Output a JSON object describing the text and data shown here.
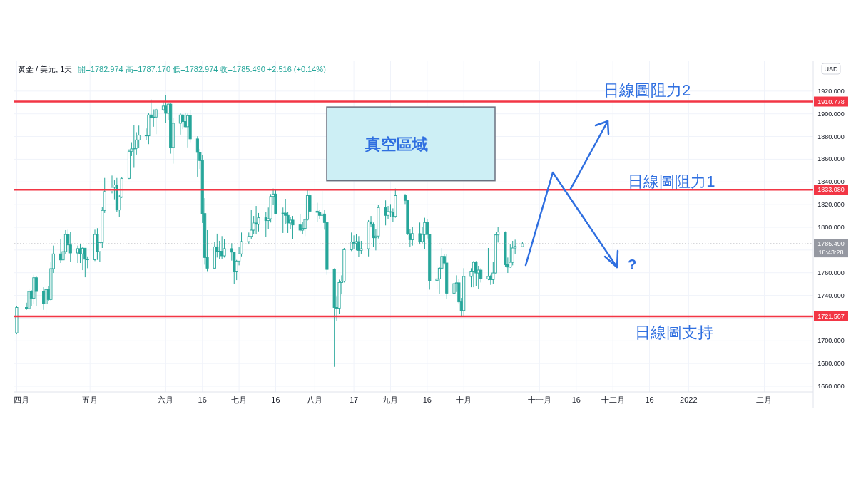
{
  "chart_data": {
    "type": "candlestick",
    "title": "黃金 / 美元, 1天",
    "subtitle": "開=1782.974 高=1787.170 低=1782.974 收=1785.490 +2.516 (+0.14%)",
    "ylabel": "USD",
    "xlim": [
      "2021-03-31",
      "2022-02-21"
    ],
    "ylim": [
      1655,
      1945
    ],
    "xticks": [
      {
        "value": "2021-04-01",
        "label": "四月"
      },
      {
        "value": "2021-05-01",
        "label": "五月"
      },
      {
        "value": "2021-06-01",
        "label": "六月"
      },
      {
        "value": "2021-06-16",
        "label": "16"
      },
      {
        "value": "2021-07-01",
        "label": "七月"
      },
      {
        "value": "2021-07-16",
        "label": "16"
      },
      {
        "value": "2021-08-01",
        "label": "八月"
      },
      {
        "value": "2021-08-17",
        "label": "17"
      },
      {
        "value": "2021-09-01",
        "label": "九月"
      },
      {
        "value": "2021-09-16",
        "label": "16"
      },
      {
        "value": "2021-10-01",
        "label": "十月"
      },
      {
        "value": "2021-11-01",
        "label": "十一月"
      },
      {
        "value": "2021-11-16",
        "label": "16"
      },
      {
        "value": "2021-12-01",
        "label": "十二月"
      },
      {
        "value": "2021-12-16",
        "label": "16"
      },
      {
        "value": "2022-01-01",
        "label": "2022"
      },
      {
        "value": "2022-02-01",
        "label": "二月"
      }
    ],
    "yticks": [
      {
        "value": 1660,
        "label": "1660.000"
      },
      {
        "value": 1680,
        "label": "1680.000"
      },
      {
        "value": 1700,
        "label": "1700.000"
      },
      {
        "value": 1720,
        "label": null
      },
      {
        "value": 1740,
        "label": "1740.000"
      },
      {
        "value": 1760,
        "label": "1760.000"
      },
      {
        "value": 1780,
        "label": null
      },
      {
        "value": 1800,
        "label": "1800.000"
      },
      {
        "value": 1820,
        "label": "1820.000"
      },
      {
        "value": 1840,
        "label": "1840.000"
      },
      {
        "value": 1860,
        "label": "1860.000"
      },
      {
        "value": 1880,
        "label": "1880.000"
      },
      {
        "value": 1900,
        "label": "1900.000"
      },
      {
        "value": 1920,
        "label": "1920.000"
      }
    ],
    "grid": true,
    "x": [
      "2021-04-01",
      "2021-04-05",
      "2021-04-06",
      "2021-04-07",
      "2021-04-08",
      "2021-04-09",
      "2021-04-12",
      "2021-04-13",
      "2021-04-14",
      "2021-04-15",
      "2021-04-16",
      "2021-04-19",
      "2021-04-20",
      "2021-04-21",
      "2021-04-22",
      "2021-04-23",
      "2021-04-26",
      "2021-04-27",
      "2021-04-28",
      "2021-04-29",
      "2021-04-30",
      "2021-05-03",
      "2021-05-04",
      "2021-05-05",
      "2021-05-06",
      "2021-05-07",
      "2021-05-10",
      "2021-05-11",
      "2021-05-12",
      "2021-05-13",
      "2021-05-14",
      "2021-05-17",
      "2021-05-18",
      "2021-05-19",
      "2021-05-20",
      "2021-05-21",
      "2021-05-24",
      "2021-05-25",
      "2021-05-26",
      "2021-05-27",
      "2021-05-28",
      "2021-05-31",
      "2021-06-01",
      "2021-06-02",
      "2021-06-03",
      "2021-06-04",
      "2021-06-07",
      "2021-06-08",
      "2021-06-09",
      "2021-06-10",
      "2021-06-11",
      "2021-06-14",
      "2021-06-15",
      "2021-06-16",
      "2021-06-17",
      "2021-06-18",
      "2021-06-21",
      "2021-06-22",
      "2021-06-23",
      "2021-06-24",
      "2021-06-25",
      "2021-06-28",
      "2021-06-29",
      "2021-06-30",
      "2021-07-01",
      "2021-07-02",
      "2021-07-05",
      "2021-07-06",
      "2021-07-07",
      "2021-07-08",
      "2021-07-09",
      "2021-07-12",
      "2021-07-13",
      "2021-07-14",
      "2021-07-15",
      "2021-07-16",
      "2021-07-19",
      "2021-07-20",
      "2021-07-21",
      "2021-07-22",
      "2021-07-23",
      "2021-07-26",
      "2021-07-27",
      "2021-07-28",
      "2021-07-29",
      "2021-07-30",
      "2021-08-02",
      "2021-08-03",
      "2021-08-04",
      "2021-08-05",
      "2021-08-06",
      "2021-08-09",
      "2021-08-10",
      "2021-08-11",
      "2021-08-12",
      "2021-08-13",
      "2021-08-16",
      "2021-08-17",
      "2021-08-18",
      "2021-08-19",
      "2021-08-20",
      "2021-08-23",
      "2021-08-24",
      "2021-08-25",
      "2021-08-26",
      "2021-08-27",
      "2021-08-30",
      "2021-08-31",
      "2021-09-01",
      "2021-09-02",
      "2021-09-03",
      "2021-09-07",
      "2021-09-08",
      "2021-09-09",
      "2021-09-10",
      "2021-09-13",
      "2021-09-14",
      "2021-09-15",
      "2021-09-16",
      "2021-09-17",
      "2021-09-20",
      "2021-09-21",
      "2021-09-22",
      "2021-09-23",
      "2021-09-24",
      "2021-09-27",
      "2021-09-28",
      "2021-09-29",
      "2021-09-30",
      "2021-10-01",
      "2021-10-04",
      "2021-10-05",
      "2021-10-06",
      "2021-10-07",
      "2021-10-08",
      "2021-10-11",
      "2021-10-12",
      "2021-10-13",
      "2021-10-14",
      "2021-10-15",
      "2021-10-18",
      "2021-10-19",
      "2021-10-20",
      "2021-10-21",
      "2021-10-22",
      "2021-10-25"
    ],
    "series": [
      {
        "color": "#26a69a",
        "ohlc": [
          [
            1707.0,
            1730.5,
            1705.8,
            1729.4
          ],
          [
            1729.4,
            1733.6,
            1727.3,
            1728.4
          ],
          [
            1728.4,
            1745.6,
            1727.3,
            1743.5
          ],
          [
            1743.5,
            1744.7,
            1730.5,
            1737.6
          ],
          [
            1737.6,
            1758.1,
            1732.6,
            1755.6
          ],
          [
            1755.6,
            1757.3,
            1730.9,
            1743.5
          ],
          [
            1743.5,
            1747.2,
            1727.3,
            1732.6
          ],
          [
            1732.6,
            1748.3,
            1723.8,
            1745.2
          ],
          [
            1745.2,
            1748.3,
            1734.7,
            1736.4
          ],
          [
            1736.4,
            1769.2,
            1735.1,
            1763.6
          ],
          [
            1763.6,
            1783.9,
            1759.8,
            1776.6
          ],
          [
            1776.6,
            1789.5,
            1768.6,
            1771.3
          ],
          [
            1771.3,
            1780.7,
            1763.6,
            1778.6
          ],
          [
            1778.6,
            1797.5,
            1776.6,
            1793.7
          ],
          [
            1793.7,
            1797.9,
            1778.2,
            1784.5
          ],
          [
            1784.5,
            1795.8,
            1769.8,
            1777.4
          ],
          [
            1777.4,
            1783.9,
            1768.6,
            1781.2
          ],
          [
            1781.2,
            1785.3,
            1768.6,
            1776.6
          ],
          [
            1776.6,
            1782.4,
            1762.3,
            1781.6
          ],
          [
            1781.6,
            1781.8,
            1756.0,
            1771.9
          ],
          [
            1771.9,
            1774.4,
            1764.0,
            1771.5
          ],
          [
            1771.5,
            1797.9,
            1770.3,
            1793.7
          ],
          [
            1793.7,
            1799.2,
            1771.3,
            1778.6
          ],
          [
            1778.6,
            1787.4,
            1769.8,
            1786.6
          ],
          [
            1786.6,
            1818.0,
            1781.8,
            1814.9
          ],
          [
            1814.9,
            1843.5,
            1812.6,
            1831.4
          ],
          [
            1831.4,
            1845.6,
            1829.9,
            1835.2
          ],
          [
            1835.2,
            1841.4,
            1824.7,
            1837.3
          ],
          [
            1837.3,
            1843.5,
            1813.2,
            1815.3
          ],
          [
            1815.3,
            1828.9,
            1809.0,
            1826.8
          ],
          [
            1826.8,
            1844.0,
            1825.8,
            1843.1
          ],
          [
            1843.1,
            1868.7,
            1842.5,
            1867.0
          ],
          [
            1867.0,
            1875.0,
            1862.8,
            1869.1
          ],
          [
            1869.1,
            1890.0,
            1852.4,
            1869.7
          ],
          [
            1869.7,
            1883.8,
            1864.1,
            1877.0
          ],
          [
            1877.0,
            1889.6,
            1869.7,
            1881.2
          ],
          [
            1881.2,
            1887.1,
            1877.0,
            1880.6
          ],
          [
            1880.6,
            1900.5,
            1873.3,
            1899.0
          ],
          [
            1899.0,
            1912.6,
            1895.9,
            1896.7
          ],
          [
            1896.7,
            1903.9,
            1888.6,
            1897.1
          ],
          [
            1897.1,
            1904.7,
            1882.1,
            1903.6
          ],
          [
            1903.6,
            1910.5,
            1902.6,
            1906.8
          ],
          [
            1906.8,
            1916.4,
            1892.1,
            1900.5
          ],
          [
            1900.5,
            1909.5,
            1894.2,
            1908.5
          ],
          [
            1908.5,
            1909.5,
            1864.9,
            1870.4
          ],
          [
            1870.4,
            1896.3,
            1856.1,
            1891.7
          ],
          [
            1891.7,
            1900.5,
            1881.7,
            1899.0
          ],
          [
            1899.0,
            1899.7,
            1886.5,
            1893.2
          ],
          [
            1893.2,
            1901.1,
            1887.5,
            1888.6
          ],
          [
            1888.6,
            1900.1,
            1870.4,
            1898.4
          ],
          [
            1898.4,
            1903.2,
            1875.0,
            1877.9
          ],
          [
            1877.9,
            1880.2,
            1844.6,
            1866.0
          ],
          [
            1866.0,
            1869.1,
            1851.5,
            1858.8
          ],
          [
            1858.8,
            1863.4,
            1803.8,
            1812.1
          ],
          [
            1812.1,
            1825.7,
            1767.1,
            1773.4
          ],
          [
            1773.4,
            1797.5,
            1760.8,
            1764.0
          ],
          [
            1764.0,
            1787.0,
            1764.0,
            1782.8
          ],
          [
            1782.8,
            1794.4,
            1773.4,
            1778.6
          ],
          [
            1778.6,
            1788.1,
            1772.4,
            1779.0
          ],
          [
            1779.0,
            1792.3,
            1772.4,
            1774.9
          ],
          [
            1774.9,
            1789.5,
            1773.4,
            1781.2
          ],
          [
            1781.2,
            1786.0,
            1770.7,
            1778.2
          ],
          [
            1778.2,
            1778.2,
            1750.4,
            1760.8
          ],
          [
            1760.8,
            1771.3,
            1753.5,
            1770.3
          ],
          [
            1770.3,
            1782.4,
            1766.5,
            1776.6
          ],
          [
            1776.6,
            1795.4,
            1774.4,
            1787.4
          ],
          [
            1787.4,
            1795.4,
            1784.9,
            1792.0
          ],
          [
            1792.0,
            1815.3,
            1789.5,
            1797.5
          ],
          [
            1797.5,
            1810.0,
            1793.7,
            1803.8
          ],
          [
            1803.8,
            1818.8,
            1793.7,
            1802.7
          ],
          [
            1802.7,
            1812.6,
            1796.4,
            1808.4
          ],
          [
            1808.4,
            1813.2,
            1791.2,
            1805.9
          ],
          [
            1805.9,
            1817.4,
            1798.5,
            1807.5
          ],
          [
            1807.5,
            1829.3,
            1804.2,
            1827.2
          ],
          [
            1827.2,
            1834.1,
            1819.5,
            1829.3
          ],
          [
            1829.3,
            1832.7,
            1811.7,
            1812.1
          ],
          [
            1812.1,
            1817.4,
            1795.0,
            1812.5
          ],
          [
            1812.5,
            1825.1,
            1802.7,
            1810.5
          ],
          [
            1810.5,
            1813.2,
            1795.0,
            1803.8
          ],
          [
            1803.8,
            1809.0,
            1798.5,
            1806.3
          ],
          [
            1806.3,
            1810.0,
            1789.5,
            1802.1
          ],
          [
            1802.1,
            1811.7,
            1796.4,
            1797.5
          ],
          [
            1797.5,
            1804.8,
            1793.7,
            1799.0
          ],
          [
            1799.0,
            1808.0,
            1792.3,
            1806.9
          ],
          [
            1806.9,
            1833.1,
            1805.9,
            1827.9
          ],
          [
            1827.9,
            1833.5,
            1813.2,
            1814.2
          ],
          [
            1814.2,
            1821.6,
            1804.8,
            1813.2
          ],
          [
            1813.2,
            1815.3,
            1806.9,
            1810.5
          ],
          [
            1810.5,
            1832.0,
            1805.9,
            1811.7
          ],
          [
            1811.7,
            1815.3,
            1797.9,
            1804.2
          ],
          [
            1804.2,
            1804.8,
            1758.1,
            1762.9
          ],
          [
            1762.9,
            1763.9,
            1677.1,
            1729.4
          ],
          [
            1729.4,
            1738.9,
            1717.5,
            1728.8
          ],
          [
            1728.8,
            1753.9,
            1723.8,
            1751.4
          ],
          [
            1751.4,
            1757.7,
            1740.9,
            1752.5
          ],
          [
            1752.5,
            1781.8,
            1751.4,
            1780.3
          ],
          [
            1780.3,
            1795.4,
            1779.1,
            1787.0
          ],
          [
            1787.0,
            1792.9,
            1780.7,
            1786.0
          ],
          [
            1786.0,
            1793.7,
            1779.7,
            1787.4
          ],
          [
            1787.4,
            1792.3,
            1774.0,
            1779.7
          ],
          [
            1779.7,
            1788.1,
            1776.6,
            1781.1
          ],
          [
            1781.1,
            1806.3,
            1774.4,
            1804.8
          ],
          [
            1804.8,
            1810.0,
            1800.6,
            1802.7
          ],
          [
            1802.7,
            1804.2,
            1782.4,
            1790.8
          ],
          [
            1790.8,
            1798.5,
            1779.7,
            1792.3
          ],
          [
            1792.3,
            1819.5,
            1790.2,
            1817.4
          ],
          [
            1817.4,
            1823.7,
            1801.7,
            1810.5
          ],
          [
            1810.5,
            1818.8,
            1806.9,
            1813.8
          ],
          [
            1813.8,
            1820.5,
            1809.0,
            1813.4
          ],
          [
            1813.4,
            1816.7,
            1804.8,
            1809.6
          ],
          [
            1809.6,
            1834.1,
            1808.4,
            1827.9
          ],
          [
            1827.9,
            1829.3,
            1820.5,
            1823.7
          ],
          [
            1823.7,
            1823.7,
            1793.3,
            1794.4
          ],
          [
            1794.4,
            1798.5,
            1782.4,
            1789.1
          ],
          [
            1789.1,
            1800.6,
            1783.9,
            1794.4
          ],
          [
            1794.4,
            1804.2,
            1784.9,
            1787.4
          ],
          [
            1787.4,
            1800.6,
            1786.0,
            1793.7
          ],
          [
            1793.7,
            1808.4,
            1780.7,
            1804.2
          ],
          [
            1804.2,
            1806.9,
            1790.2,
            1793.7
          ],
          [
            1793.7,
            1793.7,
            1745.1,
            1753.1
          ],
          [
            1753.1,
            1767.1,
            1745.5,
            1754.6
          ],
          [
            1754.6,
            1765.0,
            1741.4,
            1764.0
          ],
          [
            1764.0,
            1781.8,
            1763.6,
            1774.4
          ],
          [
            1774.4,
            1776.5,
            1767.1,
            1768.6
          ],
          [
            1768.6,
            1776.5,
            1737.2,
            1742.0
          ],
          [
            1742.0,
            1751.4,
            1741.4,
            1750.4
          ],
          [
            1750.4,
            1757.7,
            1743.0,
            1751.1
          ],
          [
            1751.1,
            1754.6,
            1733.0,
            1734.3
          ],
          [
            1734.3,
            1737.8,
            1721.7,
            1726.7
          ],
          [
            1726.7,
            1764.0,
            1721.7,
            1756.7
          ],
          [
            1756.7,
            1764.0,
            1747.2,
            1760.8
          ],
          [
            1760.8,
            1770.3,
            1747.2,
            1769.2
          ],
          [
            1769.2,
            1770.3,
            1748.3,
            1759.8
          ],
          [
            1759.8,
            1766.1,
            1745.5,
            1762.3
          ],
          [
            1762.3,
            1764.0,
            1751.4,
            1754.6
          ],
          [
            1754.6,
            1781.8,
            1753.5,
            1756.7
          ],
          [
            1756.7,
            1758.1,
            1749.3,
            1753.9
          ],
          [
            1753.9,
            1769.8,
            1750.4,
            1759.8
          ],
          [
            1759.8,
            1793.7,
            1759.4,
            1793.3
          ],
          [
            1793.3,
            1800.6,
            1786.6,
            1795.8
          ],
          [
            1795.8,
            1796.4,
            1765.0,
            1767.1
          ],
          [
            1767.1,
            1773.4,
            1759.8,
            1765.0
          ],
          [
            1765.0,
            1784.9,
            1764.4,
            1769.2
          ],
          [
            1769.2,
            1788.1,
            1766.5,
            1781.8
          ],
          [
            1781.8,
            1789.1,
            1776.6,
            1783.2
          ],
          [
            1782.974,
            1787.17,
            1782.974,
            1785.49
          ]
        ]
      }
    ],
    "ref_lines": [
      {
        "axis": "y",
        "value": 1910.778,
        "label": "1910.778",
        "color": "#f23645"
      },
      {
        "axis": "y",
        "value": 1833.08,
        "label": "1833.080",
        "color": "#f23645"
      },
      {
        "axis": "y",
        "value": 1721.567,
        "label": "1721.567",
        "color": "#f23645"
      },
      {
        "axis": "y",
        "value": 1785.49,
        "label": "1785.490\n18:43:28",
        "color": "#9598a1",
        "line_style": "dotted"
      }
    ],
    "bands": [
      {
        "axis": "y",
        "from": 1841,
        "to": 1906,
        "label": "真空區域",
        "color": "#cdeff5"
      }
    ],
    "annotations": [
      {
        "text": "日線圖阻力2",
        "x": "2021-12-15",
        "y": 1910.778
      },
      {
        "text": "日線圖阻力1",
        "x": "2021-12-25",
        "y": 1833.08
      },
      {
        "text": "日線圖支持",
        "x": "2021-12-26",
        "y": 1721.567
      },
      "?"
    ]
  }
}
